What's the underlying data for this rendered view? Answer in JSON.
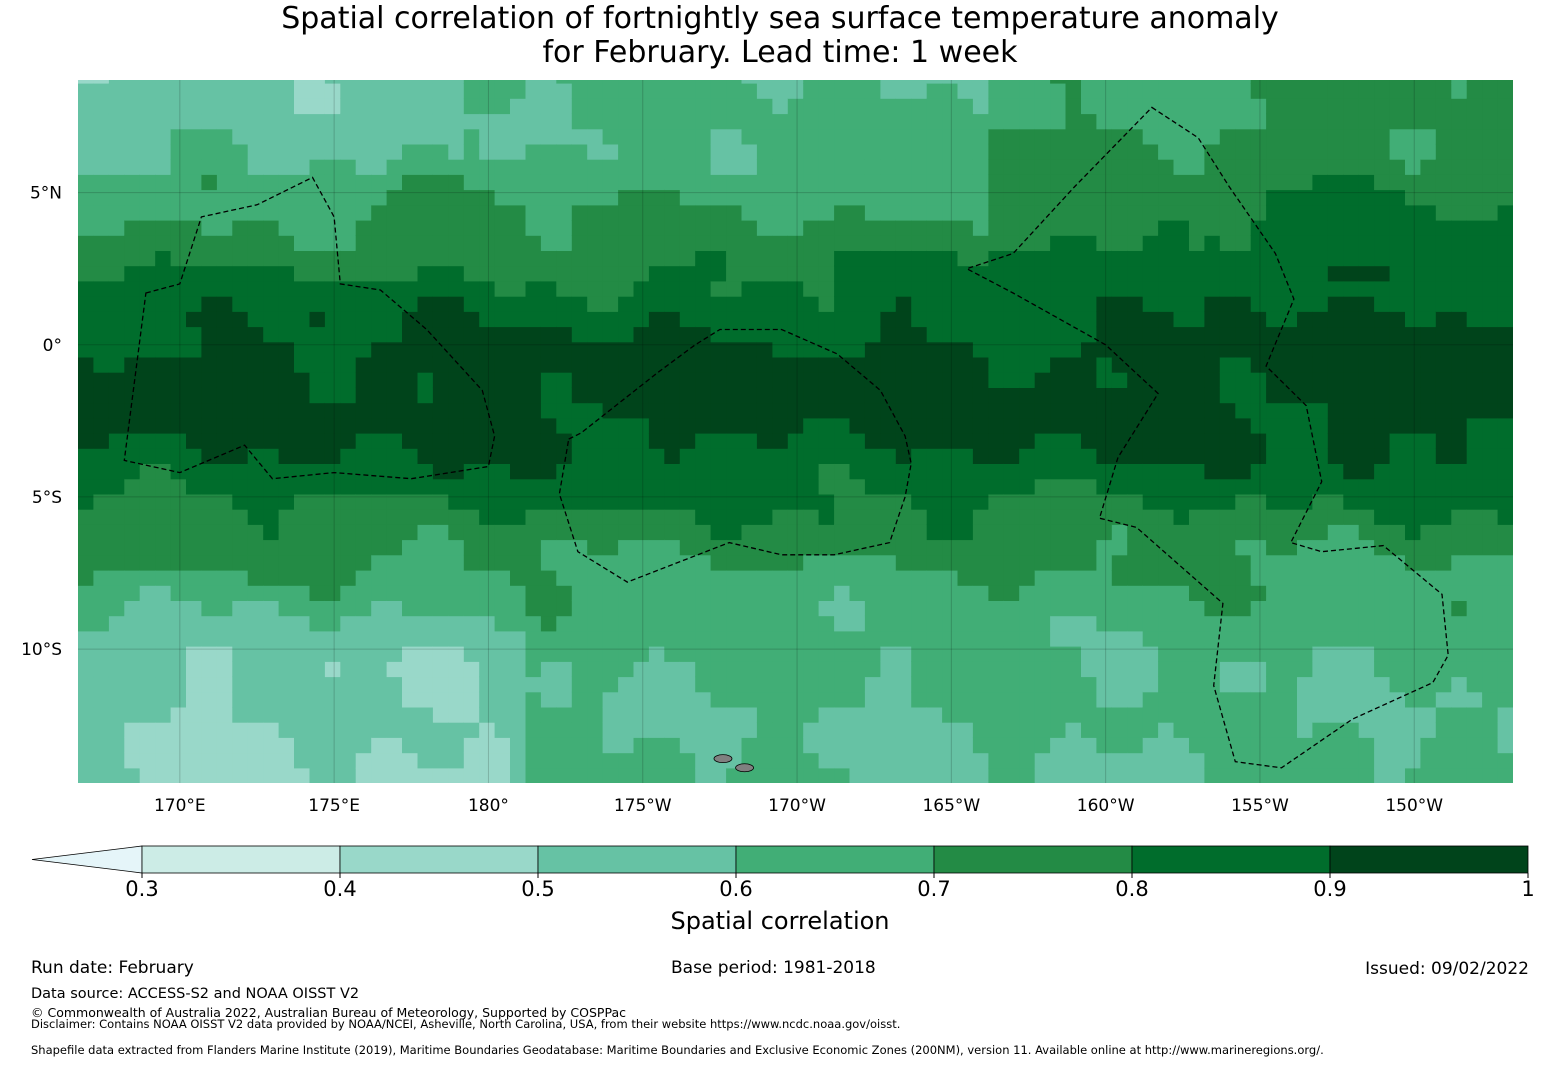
{
  "title": {
    "line1": "Spatial correlation of fortnightly sea surface temperature anomaly",
    "line2": "for February. Lead time: 1 week"
  },
  "map": {
    "lon_range": [
      166.7,
      213.2
    ],
    "lat_range": [
      -14.4,
      8.7
    ],
    "lon_ticks": [
      {
        "value": 170,
        "label": "170°E"
      },
      {
        "value": 175,
        "label": "175°E"
      },
      {
        "value": 180,
        "label": "180°"
      },
      {
        "value": 185,
        "label": "175°W"
      },
      {
        "value": 190,
        "label": "170°W"
      },
      {
        "value": 195,
        "label": "165°W"
      },
      {
        "value": 200,
        "label": "160°W"
      },
      {
        "value": 205,
        "label": "155°W"
      },
      {
        "value": 210,
        "label": "150°W"
      }
    ],
    "lat_ticks": [
      {
        "value": 5,
        "label": "5°N"
      },
      {
        "value": 0,
        "label": "0°"
      },
      {
        "value": -5,
        "label": "5°S"
      },
      {
        "value": -10,
        "label": "10°S"
      }
    ],
    "eez_boundaries": [
      [
        [
          168.9,
          1.7
        ],
        [
          170,
          2
        ],
        [
          170.7,
          4.2
        ],
        [
          172.5,
          4.6
        ],
        [
          174.3,
          5.5
        ],
        [
          175,
          4.2
        ],
        [
          175.2,
          2
        ],
        [
          176.5,
          1.8
        ],
        [
          178,
          0.5
        ],
        [
          179.8,
          -1.5
        ],
        [
          180.2,
          -3
        ],
        [
          180,
          -4
        ],
        [
          177.5,
          -4.4
        ],
        [
          175,
          -4.2
        ],
        [
          173,
          -4.4
        ],
        [
          172.1,
          -3.3
        ],
        [
          170,
          -4.2
        ],
        [
          168.2,
          -3.8
        ]
      ],
      [
        [
          201.5,
          7.8
        ],
        [
          203,
          6.8
        ],
        [
          204,
          5.2
        ],
        [
          205.5,
          3
        ],
        [
          206.1,
          1.5
        ],
        [
          205.2,
          -0.7
        ],
        [
          206.5,
          -2
        ],
        [
          207,
          -4.5
        ],
        [
          206,
          -6.5
        ],
        [
          207,
          -6.8
        ],
        [
          209,
          -6.6
        ],
        [
          210.9,
          -8.2
        ],
        [
          211.1,
          -10.2
        ],
        [
          210.6,
          -11.1
        ],
        [
          208,
          -12.3
        ],
        [
          205.7,
          -13.9
        ],
        [
          204.2,
          -13.7
        ],
        [
          203.5,
          -11.2
        ],
        [
          203.8,
          -8.5
        ],
        [
          201,
          -6
        ],
        [
          199.8,
          -5.7
        ],
        [
          200.4,
          -3.7
        ],
        [
          201.7,
          -1.6
        ],
        [
          200,
          0
        ],
        [
          197,
          1.7
        ],
        [
          195.5,
          2.5
        ],
        [
          197,
          3
        ],
        [
          199,
          5.2
        ]
      ],
      [
        [
          182.6,
          -3.1
        ],
        [
          183,
          -2.9
        ],
        [
          185.5,
          -0.9
        ],
        [
          186.7,
          0
        ],
        [
          187.5,
          0.5
        ],
        [
          189.5,
          0.5
        ],
        [
          191.3,
          -0.3
        ],
        [
          192.7,
          -1.5
        ],
        [
          193.5,
          -3
        ],
        [
          193.7,
          -3.9
        ],
        [
          193.5,
          -5
        ],
        [
          193,
          -6.5
        ],
        [
          191.2,
          -6.9
        ],
        [
          189.5,
          -6.9
        ],
        [
          187.8,
          -6.5
        ],
        [
          184.5,
          -7.8
        ],
        [
          182.9,
          -6.8
        ],
        [
          182.3,
          -4.9
        ]
      ]
    ],
    "islands": [
      {
        "lon": 187.6,
        "lat": -13.6
      },
      {
        "lon": 188.3,
        "lat": -13.9
      }
    ]
  },
  "colorbar": {
    "ticks": [
      "0.3",
      "0.4",
      "0.5",
      "0.6",
      "0.7",
      "0.8",
      "0.9",
      "1"
    ],
    "levels": [
      0.3,
      0.4,
      0.5,
      0.6,
      0.7,
      0.8,
      0.9,
      1.0
    ],
    "colors": [
      "#ccece6",
      "#99d8c9",
      "#66c2a4",
      "#41ae76",
      "#238b45",
      "#006d2c",
      "#00441b"
    ],
    "under_color": "#e5f5f9",
    "label": "Spatial correlation"
  },
  "footer": {
    "run_date": "Run date: February",
    "base_period": "Base period: 1981-2018",
    "issued": "Issued: 09/02/2022",
    "data_source": "Data source: ACCESS-S2 and NOAA OISST V2",
    "copyright": "© Commonwealth of Australia 2022, Australian Bureau of Meteorology, Supported by COSPPac",
    "disclaimer": "Disclaimer: Contains NOAA OISST V2 data provided by NOAA/NCEI, Asheville, North Carolina, USA, from their website https://www.ncdc.noaa.gov/oisst.",
    "shapefile": "Shapefile data extracted from Flanders Marine Institute (2019), Maritime Boundaries Geodatabase: Maritime Boundaries and Exclusive Economic Zones (200NM), version 11. Available online at http://www.marineregions.org/."
  }
}
